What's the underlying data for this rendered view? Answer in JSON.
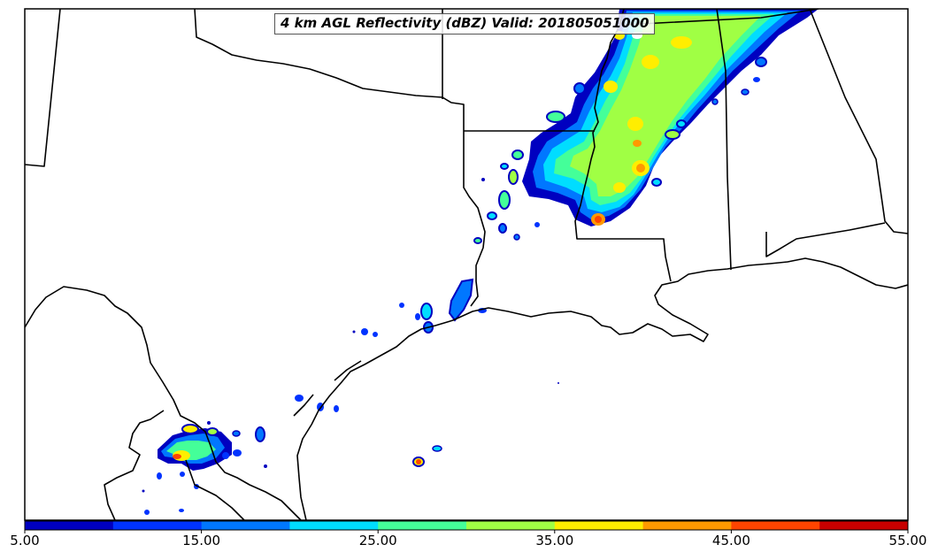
{
  "map": {
    "title": "4 km AGL Reflectivity (dBZ) Valid: 201805051000"
  },
  "colorbar": {
    "min": 5,
    "max": 55,
    "colors": [
      "#0000c0",
      "#0033ff",
      "#0077ff",
      "#00ddff",
      "#44ff99",
      "#a0ff44",
      "#ffee00",
      "#ff9900",
      "#ff4400",
      "#c80000"
    ],
    "tick_labels": [
      "5.00",
      "15.00",
      "25.00",
      "35.00",
      "45.00",
      "55.00"
    ]
  },
  "style": {
    "background": "#ffffff",
    "border": "#000000",
    "boundary_lines": "#000000"
  }
}
